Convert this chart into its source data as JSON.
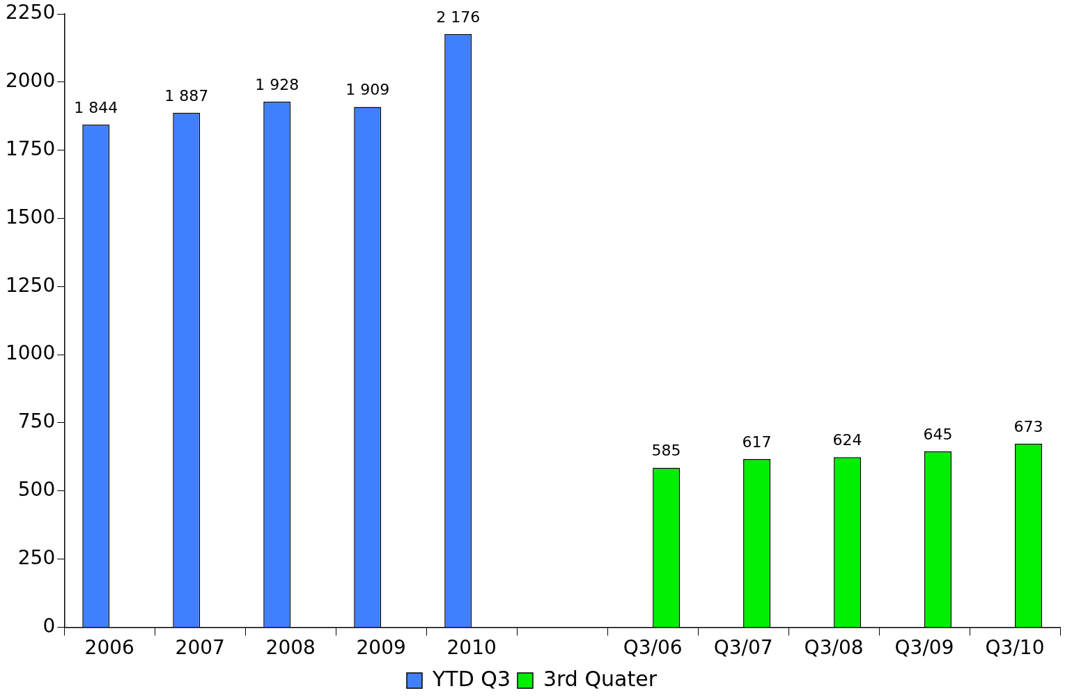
{
  "chart_data": {
    "type": "bar",
    "categories": [
      "2006",
      "2007",
      "2008",
      "2009",
      "2010",
      null,
      "Q3/06",
      "Q3/07",
      "Q3/08",
      "Q3/09",
      "Q3/10"
    ],
    "series": [
      {
        "name": "YTD Q3",
        "color": "#4080ff",
        "values": [
          1844,
          1887,
          1928,
          1909,
          2176,
          null,
          null,
          null,
          null,
          null,
          null
        ],
        "value_labels": [
          "1 844",
          "1 887",
          "1 928",
          "1 909",
          "2 176",
          null,
          null,
          null,
          null,
          null,
          null
        ]
      },
      {
        "name": "3rd Quater",
        "color": "#00ee00",
        "values": [
          null,
          null,
          null,
          null,
          null,
          null,
          585,
          617,
          624,
          645,
          673
        ],
        "value_labels": [
          null,
          null,
          null,
          null,
          null,
          null,
          "585",
          "617",
          "624",
          "645",
          "673"
        ]
      }
    ],
    "ylim": [
      0,
      2250
    ],
    "yticks": [
      0,
      250,
      500,
      750,
      1000,
      1250,
      1500,
      1750,
      2000,
      2250
    ],
    "grid": false,
    "legend": "bottom"
  }
}
